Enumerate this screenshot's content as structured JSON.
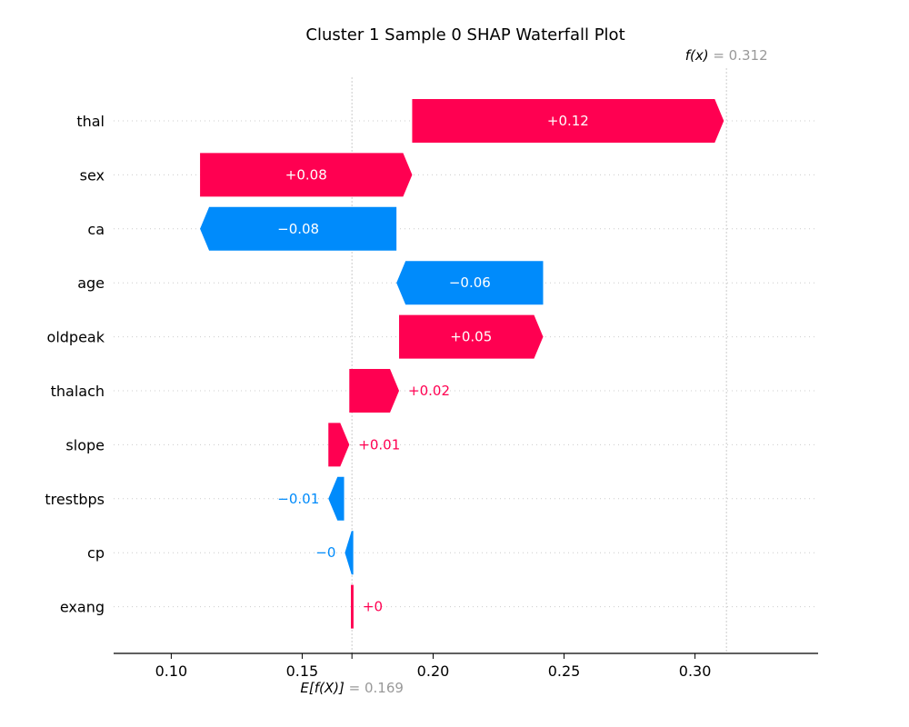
{
  "chart_data": {
    "type": "waterfall",
    "title": "Cluster 1 Sample 0 SHAP Waterfall Plot",
    "base_value": 0.169,
    "base_label_prefix": "E[f(X)]",
    "base_value_text": "= 0.169",
    "output_value": 0.312,
    "output_label_prefix": "f(x)",
    "output_value_text": "= 0.312",
    "xlim": [
      0.078,
      0.347
    ],
    "xticks": [
      0.1,
      0.15,
      0.2,
      0.25,
      0.3
    ],
    "xtick_labels": [
      "0.10",
      "0.15",
      "0.20",
      "0.25",
      "0.30"
    ],
    "grid": "horizontal dotted",
    "features": [
      {
        "name": "thal",
        "start": 0.192,
        "end": 0.311,
        "label": "+0.12",
        "sign": "pos"
      },
      {
        "name": "sex",
        "start": 0.111,
        "end": 0.192,
        "label": "+0.08",
        "sign": "pos"
      },
      {
        "name": "ca",
        "start": 0.186,
        "end": 0.111,
        "label": "−0.08",
        "sign": "neg"
      },
      {
        "name": "age",
        "start": 0.242,
        "end": 0.186,
        "label": "−0.06",
        "sign": "neg"
      },
      {
        "name": "oldpeak",
        "start": 0.187,
        "end": 0.242,
        "label": "+0.05",
        "sign": "pos"
      },
      {
        "name": "thalach",
        "start": 0.168,
        "end": 0.187,
        "label": "+0.02",
        "sign": "pos"
      },
      {
        "name": "slope",
        "start": 0.16,
        "end": 0.168,
        "label": "+0.01",
        "sign": "pos"
      },
      {
        "name": "trestbps",
        "start": 0.166,
        "end": 0.16,
        "label": "−0.01",
        "sign": "neg"
      },
      {
        "name": "cp",
        "start": 0.1695,
        "end": 0.1663,
        "label": "−0",
        "sign": "neg"
      },
      {
        "name": "exang",
        "start": 0.1686,
        "end": 0.1696,
        "label": "+0",
        "sign": "pos"
      }
    ],
    "colors": {
      "positive": "#ff0051",
      "negative": "#008bfb",
      "axis": "#000000",
      "muted": "#999999",
      "grid": "#cccccc"
    }
  }
}
